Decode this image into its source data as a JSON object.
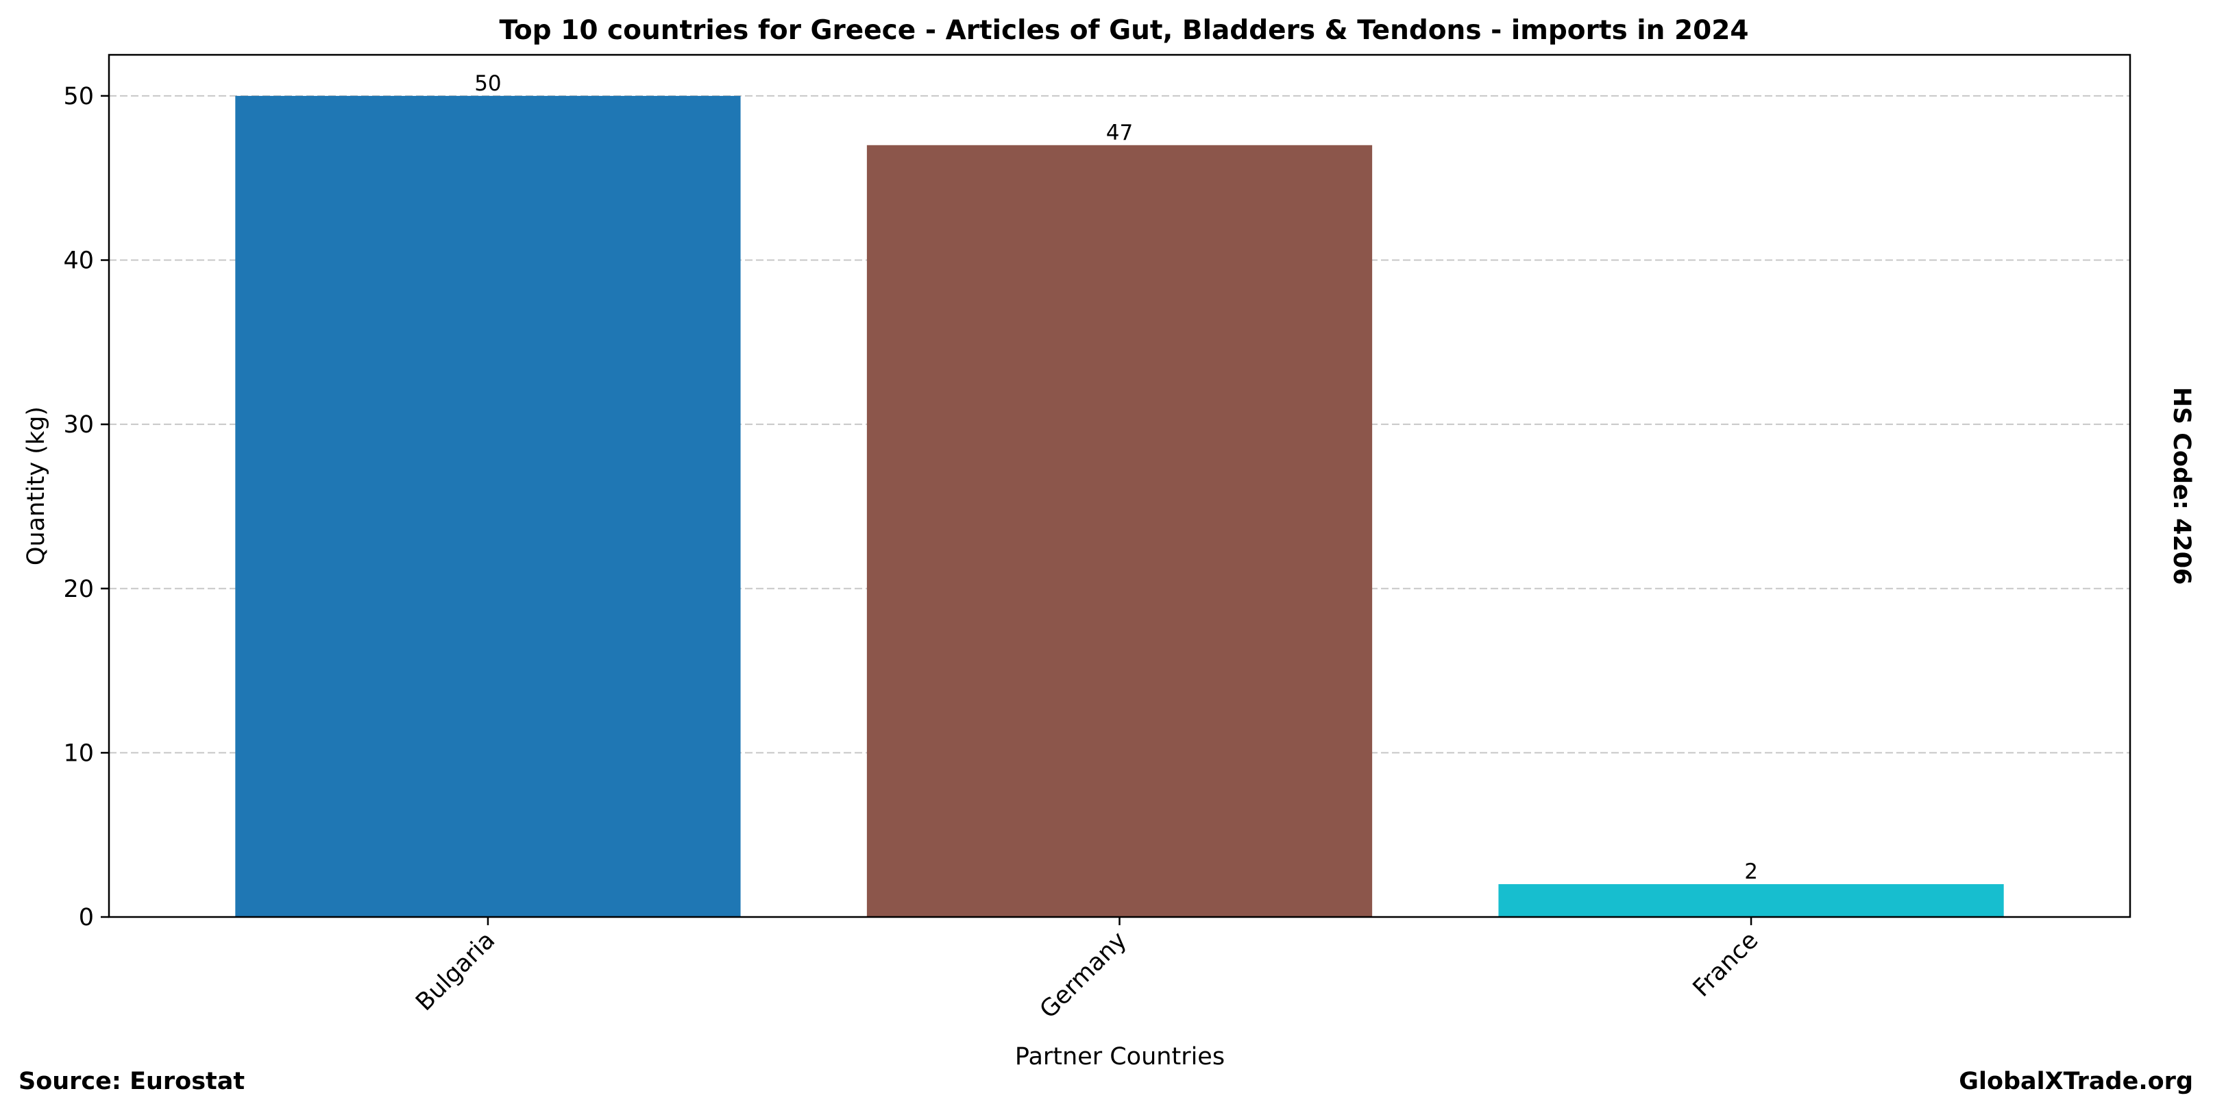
{
  "chart_data": {
    "type": "bar",
    "title": "Top 10 countries for Greece - Articles of Gut, Bladders & Tendons - imports in 2024",
    "xlabel": "Partner Countries",
    "ylabel": "Quantity (kg)",
    "categories": [
      "Bulgaria",
      "Germany",
      "France"
    ],
    "values": [
      50,
      47,
      2
    ],
    "colors": [
      "#1f77b4",
      "#8c564b",
      "#17becf"
    ],
    "data_labels": [
      "50",
      "47",
      "2"
    ],
    "ylim": [
      0,
      52.5
    ],
    "yticks": [
      0,
      10,
      20,
      30,
      40,
      50
    ],
    "ytick_labels": [
      "0",
      "10",
      "20",
      "30",
      "40",
      "50"
    ],
    "grid": "y-dashed",
    "legend": "none"
  },
  "annotations": {
    "hs_code": "HS Code: 4206",
    "source": "Source: Eurostat",
    "site": "GlobalXTrade.org"
  }
}
